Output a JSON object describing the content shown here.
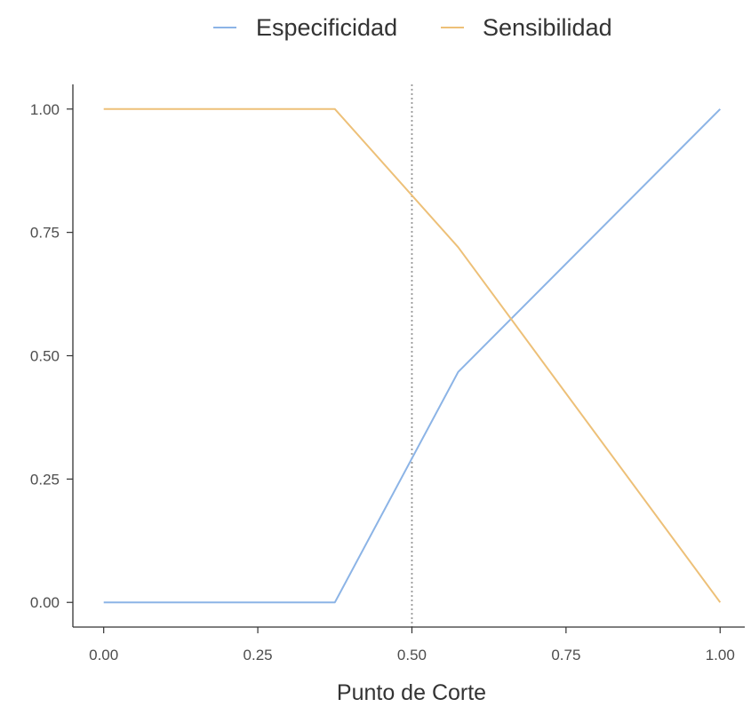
{
  "chart_data": {
    "type": "line",
    "xlabel": "Punto de Corte",
    "ylabel": "",
    "xlim": [
      -0.05,
      1.04
    ],
    "ylim": [
      -0.05,
      1.05
    ],
    "x_ticks": [
      0.0,
      0.25,
      0.5,
      0.75,
      1.0
    ],
    "x_tick_labels": [
      "0.00",
      "0.25",
      "0.50",
      "0.75",
      "1.00"
    ],
    "y_ticks": [
      0.0,
      0.25,
      0.5,
      0.75,
      1.0
    ],
    "y_tick_labels": [
      "0.00",
      "0.25",
      "0.50",
      "0.75",
      "1.00"
    ],
    "grid": false,
    "legend_position": "top",
    "cutoff_line": {
      "x": 0.5,
      "style": "dotted",
      "color": "#999999"
    },
    "series": [
      {
        "name": "Especificidad",
        "color": "#8cb4e6",
        "x": [
          0.0,
          0.375,
          0.575,
          1.0
        ],
        "y": [
          0.0,
          0.0,
          0.467,
          1.0
        ]
      },
      {
        "name": "Sensibilidad",
        "color": "#edc078",
        "x": [
          0.0,
          0.375,
          0.575,
          1.0
        ],
        "y": [
          1.0,
          1.0,
          0.72,
          0.0
        ]
      }
    ]
  }
}
